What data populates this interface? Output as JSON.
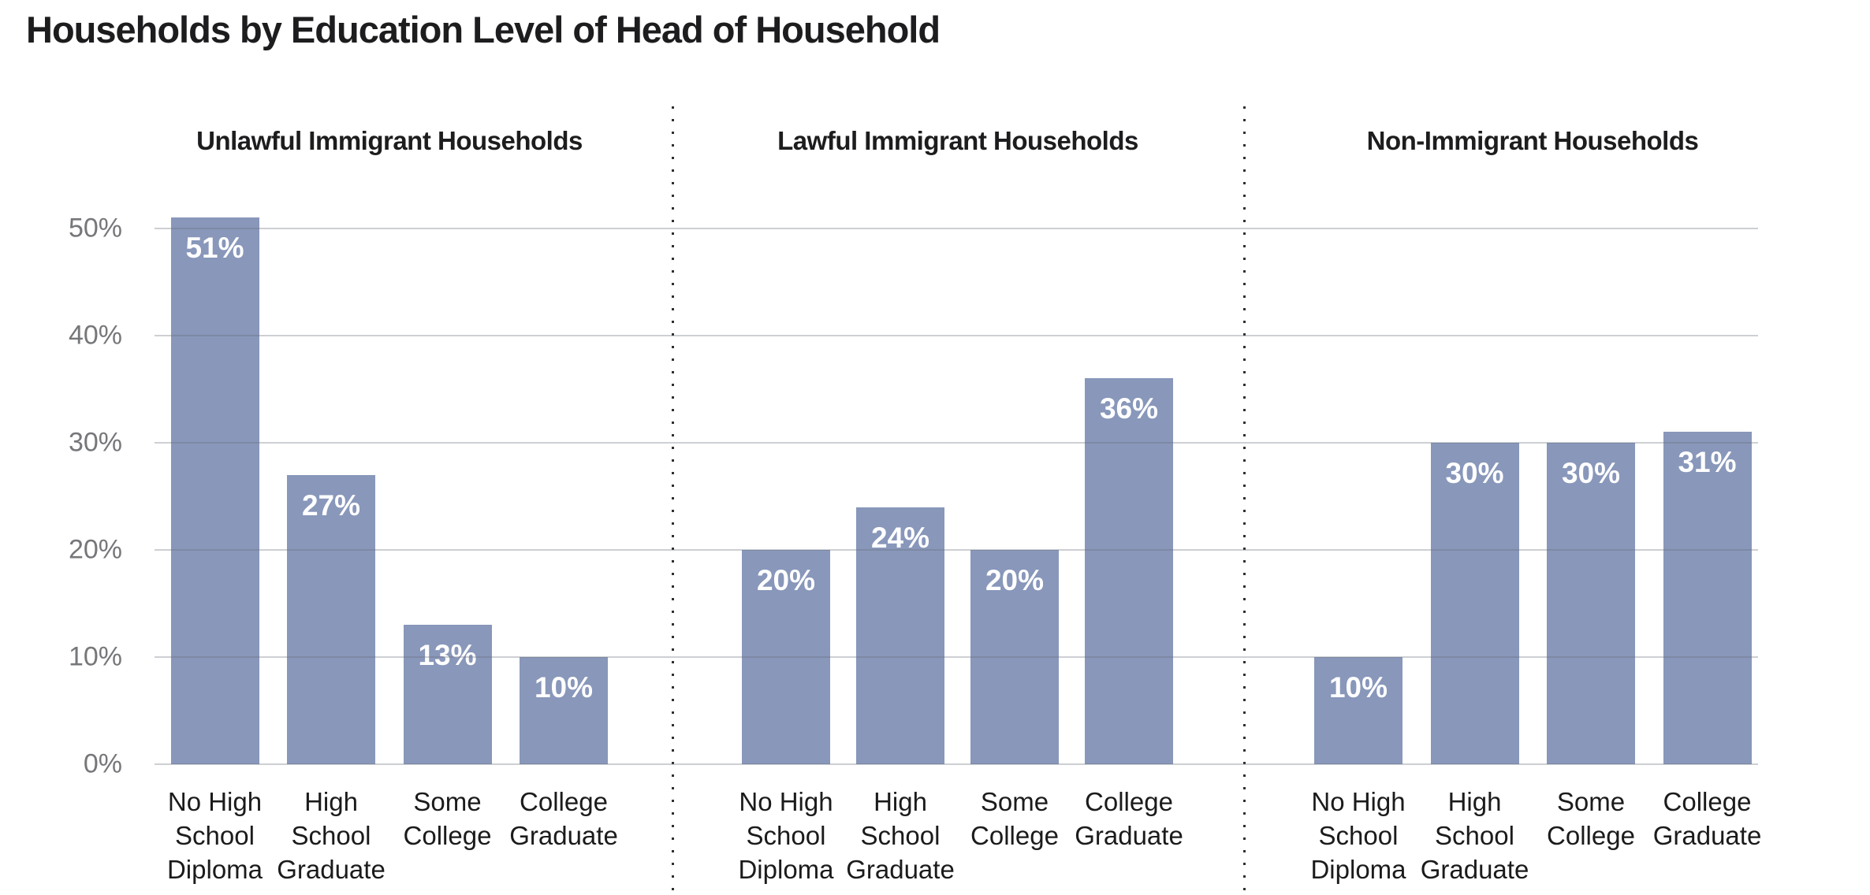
{
  "title": "Households by Education Level of Head of Household",
  "chart_data": {
    "type": "bar",
    "title": "Households by Education Level of Head of Household",
    "xlabel": "",
    "ylabel": "",
    "ylim": [
      0,
      50
    ],
    "grid": true,
    "legend": false,
    "y_ticks": [
      {
        "value": 0,
        "label": "0%"
      },
      {
        "value": 10,
        "label": "10%"
      },
      {
        "value": 20,
        "label": "20%"
      },
      {
        "value": 30,
        "label": "30%"
      },
      {
        "value": 40,
        "label": "40%"
      },
      {
        "value": 50,
        "label": "50%"
      }
    ],
    "categories": [
      "No High\nSchool\nDiploma",
      "High\nSchool\nGraduate",
      "Some\nCollege",
      "College\nGraduate"
    ],
    "panels": [
      {
        "label": "Unlawful Immigrant Households",
        "values": [
          51,
          27,
          13,
          10
        ],
        "value_labels": [
          "51%",
          "27%",
          "13%",
          "10%"
        ]
      },
      {
        "label": "Lawful Immigrant Households",
        "values": [
          20,
          24,
          20,
          36
        ],
        "value_labels": [
          "20%",
          "24%",
          "20%",
          "36%"
        ]
      },
      {
        "label": "Non-Immigrant Households",
        "values": [
          10,
          30,
          30,
          31
        ],
        "value_labels": [
          "10%",
          "30%",
          "30%",
          "31%"
        ]
      }
    ],
    "colors": {
      "bar": "#8897ba",
      "gridline": "#cbcdd1",
      "axis_text": "#76777a",
      "heading_text": "#1d1d1f",
      "category_text": "#1b1b1b",
      "value_label_text": "#ffffff",
      "separator": "#2f2f2f",
      "background": "#ffffff"
    }
  }
}
